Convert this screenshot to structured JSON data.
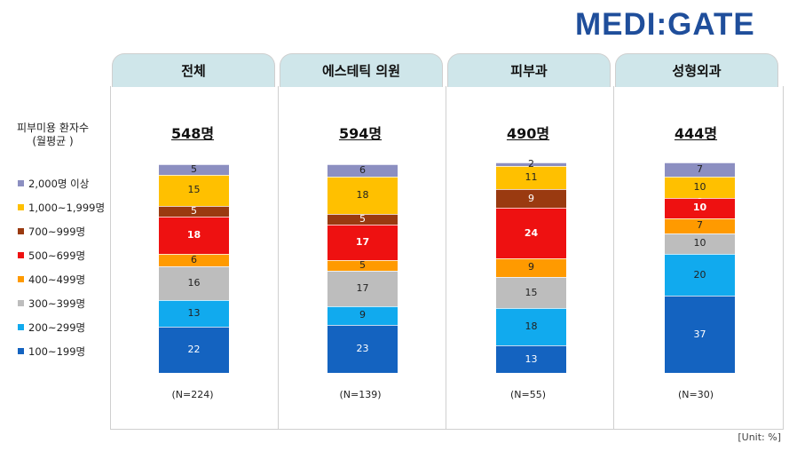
{
  "logo": "MEDI:GATE",
  "row_title_line1": "피부미용 환자수",
  "row_title_line2": "(월평균 )",
  "unit_note": "[Unit: %]",
  "legend": [
    {
      "label": "2,000명 이상",
      "color": "#8c8fc1"
    },
    {
      "label": "1,000~1,999명",
      "color": "#ffc000"
    },
    {
      "label": "700~999명",
      "color": "#9a3a10"
    },
    {
      "label": "500~699명",
      "color": "#ee1111"
    },
    {
      "label": "400~499명",
      "color": "#ff9a00"
    },
    {
      "label": "300~399명",
      "color": "#bdbdbd"
    },
    {
      "label": "200~299명",
      "color": "#11aaee"
    },
    {
      "label": "100~199명",
      "color": "#1463c0"
    }
  ],
  "columns": [
    {
      "header": "전체",
      "total": "548명",
      "n": "(N=224)"
    },
    {
      "header": "에스테틱 의원",
      "total": "594명",
      "n": "(N=139)"
    },
    {
      "header": "피부과",
      "total": "490명",
      "n": "(N=55)"
    },
    {
      "header": "성형외과",
      "total": "444명",
      "n": "(N=30)"
    }
  ],
  "chart_data": {
    "type": "bar",
    "stacked": true,
    "categories": [
      "전체",
      "에스테틱 의원",
      "피부과",
      "성형외과"
    ],
    "series": [
      {
        "name": "100~199명",
        "values": [
          22,
          23,
          13,
          37
        ],
        "labels": [
          "22",
          "23",
          "13",
          "37"
        ]
      },
      {
        "name": "200~299명",
        "values": [
          13,
          9,
          18,
          20
        ],
        "labels": [
          "13",
          "9",
          "18",
          "20"
        ]
      },
      {
        "name": "300~399명",
        "values": [
          16,
          17,
          15,
          10
        ],
        "labels": [
          "16",
          "17",
          "15",
          "10"
        ]
      },
      {
        "name": "400~499명",
        "values": [
          6,
          5,
          9,
          7
        ],
        "labels": [
          "6",
          "5",
          "9",
          "7"
        ]
      },
      {
        "name": "500~699명",
        "values": [
          18,
          17,
          24,
          10
        ],
        "labels": [
          "18",
          "17",
          "24",
          "10"
        ]
      },
      {
        "name": "700~999명",
        "values": [
          5,
          5,
          9,
          0
        ],
        "labels": [
          "5",
          "5",
          "9",
          "0"
        ]
      },
      {
        "name": "1,000~1,999명",
        "values": [
          15,
          18,
          11,
          10
        ],
        "labels": [
          "15",
          "18",
          "11",
          "10"
        ]
      },
      {
        "name": "2,000명 이상",
        "values": [
          5,
          6,
          2,
          7
        ],
        "labels": [
          "5",
          "6",
          "2",
          "7"
        ]
      }
    ],
    "unit": "%",
    "ylim": [
      0,
      100
    ]
  }
}
